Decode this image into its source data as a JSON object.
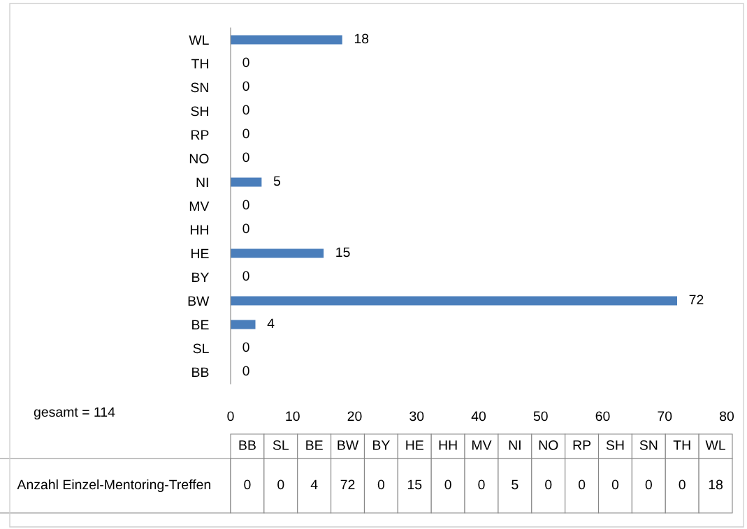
{
  "chart_data": [
    {
      "type": "bar",
      "orientation": "horizontal",
      "categories": [
        "WL",
        "TH",
        "SN",
        "SH",
        "RP",
        "NO",
        "NI",
        "MV",
        "HH",
        "HE",
        "BY",
        "BW",
        "BE",
        "SL",
        "BB"
      ],
      "series": [
        {
          "color": "#4a7ebb",
          "values": [
            18,
            0,
            0,
            0,
            0,
            0,
            5,
            0,
            0,
            15,
            0,
            72,
            4,
            0,
            0
          ]
        }
      ],
      "xlim": [
        0,
        80
      ],
      "xticks": [
        0,
        10,
        20,
        30,
        40,
        50,
        60,
        70,
        80
      ],
      "data_labels": true,
      "grid": false,
      "annotations": [
        "gesamt = 114"
      ]
    },
    {
      "type": "other",
      "categories": [
        "BB",
        "SL",
        "BE",
        "BW",
        "BY",
        "HE",
        "HH",
        "MV",
        "NI",
        "NO",
        "RP",
        "SH",
        "SN",
        "TH",
        "WL"
      ],
      "series": [
        {
          "name": "Anzahl Einzel-Mentoring-Treffen",
          "values": [
            0,
            0,
            4,
            72,
            0,
            15,
            0,
            0,
            5,
            0,
            0,
            0,
            0,
            0,
            18
          ]
        }
      ],
      "data_labels": true
    }
  ]
}
